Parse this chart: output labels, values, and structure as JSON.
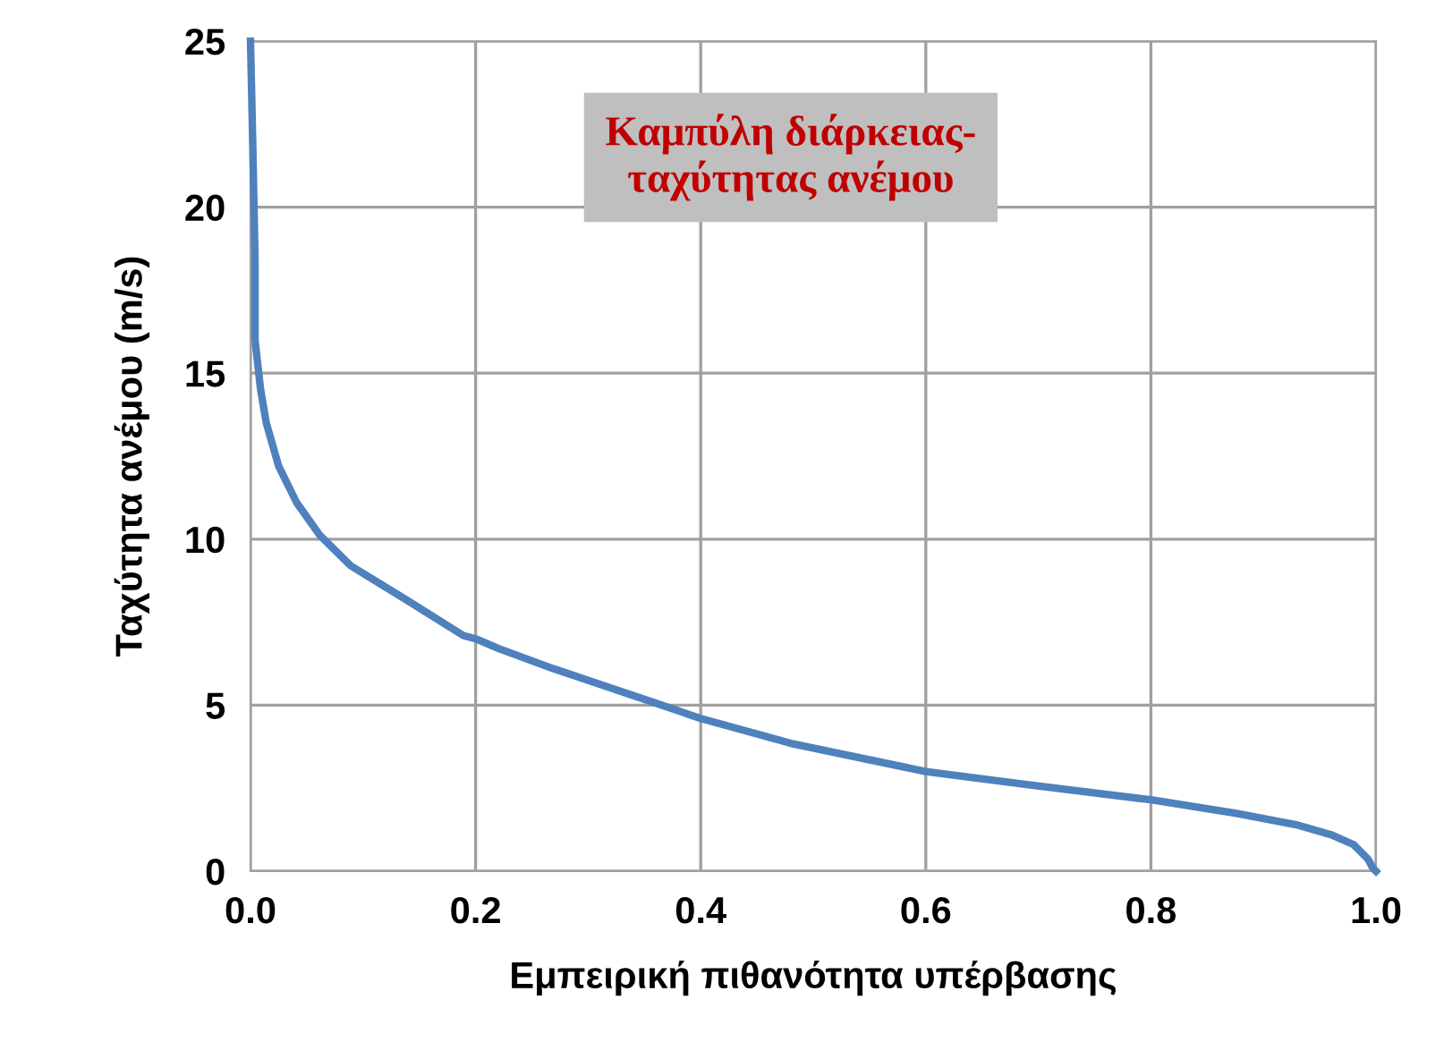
{
  "chart_data": {
    "type": "line",
    "title": "Καμπύλη διάρκειας-\nταχύτητας ανέμου",
    "xlabel": "Εμπειρική πιθανότητα υπέρβασης",
    "ylabel": "Ταχύτητα ανέμου (m/s)",
    "series": [
      {
        "color": "#4f81bd",
        "x": [
          0.0,
          0.002,
          0.004,
          0.004,
          0.009,
          0.014,
          0.025,
          0.041,
          0.062,
          0.089,
          0.142,
          0.189,
          0.2,
          0.221,
          0.269,
          0.348,
          0.4,
          0.48,
          0.6,
          0.691,
          0.8,
          0.876,
          0.929,
          0.96,
          0.98,
          0.993,
          0.997,
          1.0
        ],
        "values": [
          25,
          21.9,
          18.5,
          16.0,
          14.5,
          13.5,
          12.2,
          11.1,
          10.1,
          9.2,
          8.1,
          7.1,
          7.0,
          6.7,
          6.1,
          5.2,
          4.6,
          3.85,
          3.0,
          2.6,
          2.15,
          1.74,
          1.4,
          1.1,
          0.8,
          0.36,
          0.1,
          0
        ]
      }
    ],
    "xlim": [
      0,
      1
    ],
    "xticks": [
      {
        "value": 0,
        "label": "0.0"
      },
      0.2,
      0.4,
      0.6,
      0.8,
      {
        "value": 1,
        "label": "1.0"
      }
    ],
    "ylim": [
      0,
      25
    ],
    "yticks": [
      0,
      5,
      10,
      15,
      20,
      25
    ],
    "grid": true,
    "marker": "none",
    "line_style": "solid"
  }
}
